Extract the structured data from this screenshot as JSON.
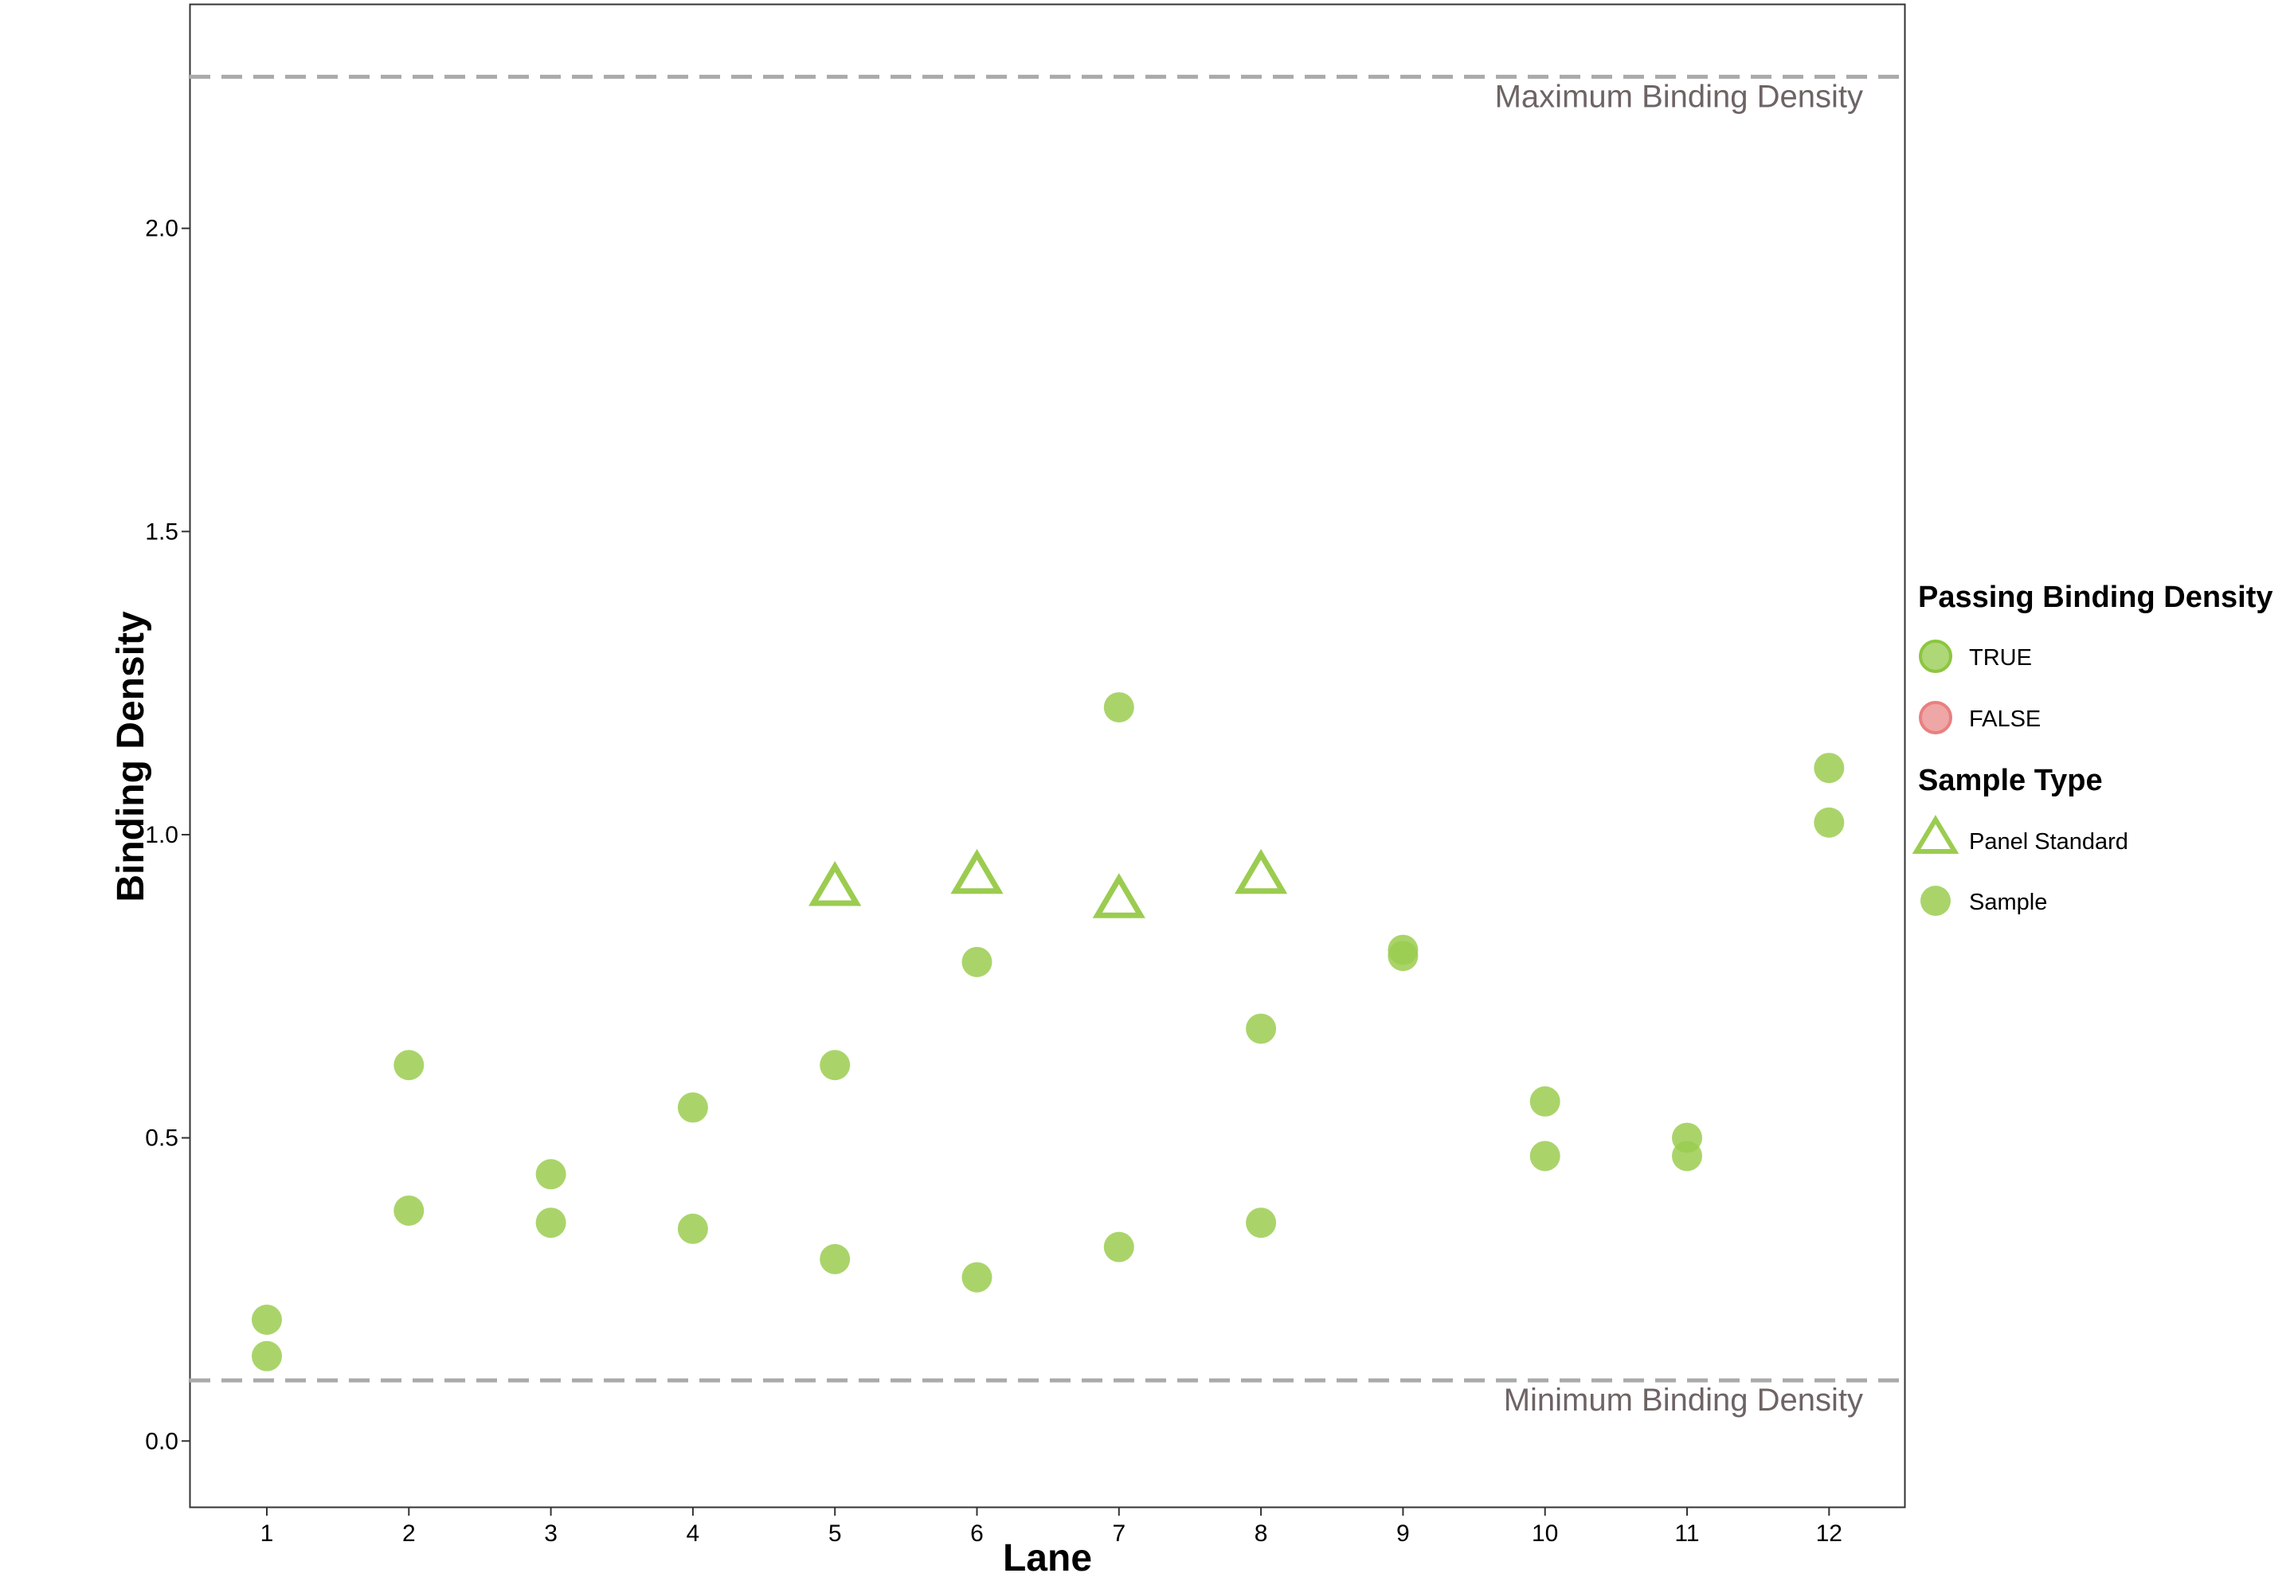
{
  "chart_data": {
    "type": "scatter",
    "xlabel": "Lane",
    "ylabel": "Binding Density",
    "categories": [
      "1",
      "2",
      "3",
      "4",
      "5",
      "6",
      "7",
      "8",
      "9",
      "10",
      "11",
      "12"
    ],
    "ylim": [
      -0.11,
      2.37
    ],
    "yticks": [
      "0.0",
      "0.5",
      "1.0",
      "1.5",
      "2.0"
    ],
    "ytick_values": [
      0,
      0.5,
      1.0,
      1.5,
      2.0
    ],
    "grid": false,
    "reference_lines": [
      {
        "label": "Maximum Binding Density",
        "value": 2.25
      },
      {
        "label": "Minimum Binding Density",
        "value": 0.1
      }
    ],
    "legend": {
      "placement": "right",
      "groups": [
        {
          "title": "Passing Binding Density",
          "entries": [
            {
              "label": "TRUE",
              "color": "#8cc63f"
            },
            {
              "label": "FALSE",
              "color": "#e88080"
            }
          ]
        },
        {
          "title": "Sample Type",
          "entries": [
            {
              "label": "Panel Standard",
              "shape": "triangle-open"
            },
            {
              "label": "Sample",
              "shape": "circle-filled"
            }
          ]
        }
      ]
    },
    "colors": {
      "pass": "#9bcc50",
      "fail": "#e88080",
      "ref_line": "#aaaaaa"
    },
    "series": [
      {
        "name": "Sample",
        "shape": "circle-filled",
        "points": [
          {
            "x": 1,
            "y": 0.2
          },
          {
            "x": 1,
            "y": 0.14
          },
          {
            "x": 2,
            "y": 0.62
          },
          {
            "x": 2,
            "y": 0.38
          },
          {
            "x": 3,
            "y": 0.44
          },
          {
            "x": 3,
            "y": 0.36
          },
          {
            "x": 4,
            "y": 0.55
          },
          {
            "x": 4,
            "y": 0.35
          },
          {
            "x": 5,
            "y": 0.62
          },
          {
            "x": 5,
            "y": 0.3
          },
          {
            "x": 6,
            "y": 0.79
          },
          {
            "x": 6,
            "y": 0.27
          },
          {
            "x": 7,
            "y": 1.21
          },
          {
            "x": 7,
            "y": 0.32
          },
          {
            "x": 8,
            "y": 0.68
          },
          {
            "x": 8,
            "y": 0.36
          },
          {
            "x": 9,
            "y": 0.81
          },
          {
            "x": 9,
            "y": 0.8
          },
          {
            "x": 10,
            "y": 0.56
          },
          {
            "x": 10,
            "y": 0.47
          },
          {
            "x": 11,
            "y": 0.5
          },
          {
            "x": 11,
            "y": 0.47
          },
          {
            "x": 12,
            "y": 1.11
          },
          {
            "x": 12,
            "y": 1.02
          }
        ]
      },
      {
        "name": "Panel Standard",
        "shape": "triangle-open",
        "points": [
          {
            "x": 5,
            "y": 0.91
          },
          {
            "x": 6,
            "y": 0.93
          },
          {
            "x": 7,
            "y": 0.89
          },
          {
            "x": 8,
            "y": 0.93
          }
        ]
      }
    ]
  }
}
